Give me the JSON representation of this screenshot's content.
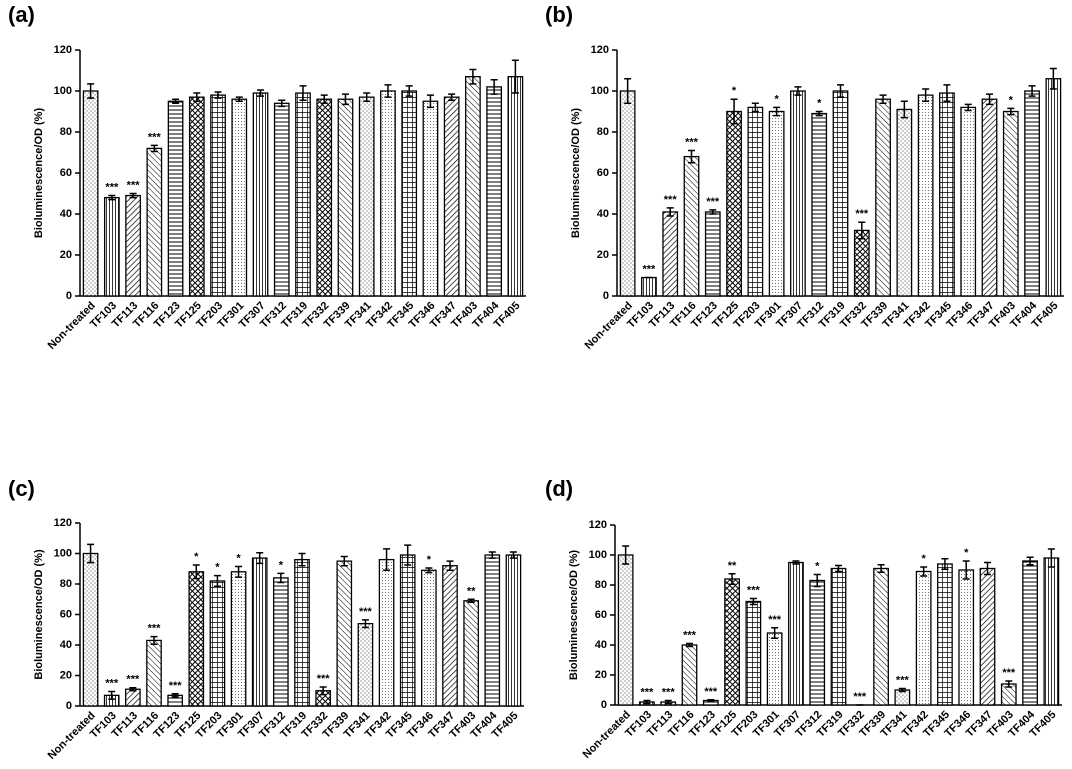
{
  "chart_data": [
    {
      "type": "bar",
      "panel_label": "(a)",
      "ylabel": "Bioluminescence/OD (%)",
      "categories": [
        "Non-treated",
        "TF103",
        "TF113",
        "TF116",
        "TF123",
        "TF125",
        "TF203",
        "TF301",
        "TF307",
        "TF312",
        "TF319",
        "TF332",
        "TF339",
        "TF341",
        "TF342",
        "TF345",
        "TF346",
        "TF347",
        "TF403",
        "TF404",
        "TF405"
      ],
      "values": [
        100,
        48,
        49,
        72,
        95,
        97,
        98,
        96,
        99,
        94,
        99,
        96,
        96,
        97,
        100,
        100,
        95,
        97,
        107,
        102,
        107
      ],
      "errors": [
        3.5,
        1,
        1,
        1.5,
        1,
        2,
        1.5,
        1,
        1.5,
        1.5,
        3.5,
        2,
        2.5,
        2,
        3,
        2.5,
        3,
        1.5,
        3.5,
        3.5,
        8
      ],
      "annotations": [
        null,
        "***",
        "***",
        "***",
        null,
        null,
        null,
        null,
        null,
        null,
        null,
        null,
        null,
        null,
        null,
        null,
        null,
        null,
        null,
        null,
        null
      ],
      "color": "#000000",
      "ylim": [
        0,
        120
      ],
      "yticks": [
        0,
        20,
        40,
        60,
        80,
        100,
        120
      ]
    },
    {
      "type": "bar",
      "panel_label": "(b)",
      "ylabel": "Bioluminescence/OD (%)",
      "categories": [
        "Non-treated",
        "TF103",
        "TF113",
        "TF116",
        "TF123",
        "TF125",
        "TF203",
        "TF301",
        "TF307",
        "TF312",
        "TF319",
        "TF332",
        "TF339",
        "TF341",
        "TF342",
        "TF345",
        "TF346",
        "TF347",
        "TF403",
        "TF404",
        "TF405"
      ],
      "values": [
        100,
        9,
        41,
        68,
        41,
        90,
        92,
        90,
        100,
        89,
        100,
        32,
        96,
        91,
        98,
        99,
        92,
        96,
        90,
        100,
        106
      ],
      "errors": [
        6,
        0,
        2,
        3,
        1,
        6,
        2,
        2,
        2,
        1,
        3,
        4,
        2,
        4,
        3,
        4,
        1.5,
        2.5,
        1.5,
        2.5,
        5
      ],
      "annotations": [
        null,
        "***",
        "***",
        "***",
        "***",
        "*",
        null,
        "*",
        null,
        "*",
        null,
        "***",
        null,
        null,
        null,
        null,
        null,
        null,
        "*",
        null,
        null
      ],
      "color": "#000000",
      "ylim": [
        0,
        120
      ],
      "yticks": [
        0,
        20,
        40,
        60,
        80,
        100,
        120
      ]
    },
    {
      "type": "bar",
      "panel_label": "(c)",
      "ylabel": "Bioluminescence/OD (%)",
      "categories": [
        "Non-treated",
        "TF103",
        "TF113",
        "TF116",
        "TF123",
        "TF125",
        "TF203",
        "TF301",
        "TF307",
        "TF312",
        "TF319",
        "TF332",
        "TF339",
        "TF341",
        "TF342",
        "TF345",
        "TF346",
        "TF347",
        "TF403",
        "TF404",
        "TF405"
      ],
      "values": [
        100,
        7,
        11,
        43,
        7,
        88,
        82,
        88,
        97,
        84,
        96,
        10,
        95,
        54,
        96,
        99,
        89,
        92,
        69,
        99,
        99
      ],
      "errors": [
        6,
        2.5,
        1,
        2.5,
        1,
        4.5,
        3.5,
        3.5,
        3.5,
        3,
        4,
        2.5,
        3,
        2.5,
        7,
        6.5,
        1.5,
        3,
        1,
        2,
        2
      ],
      "annotations": [
        null,
        "***",
        "***",
        "***",
        "***",
        "*",
        "*",
        "*",
        null,
        "*",
        null,
        "***",
        null,
        "***",
        null,
        null,
        "*",
        null,
        "**",
        null,
        null
      ],
      "color": "#000000",
      "ylim": [
        0,
        120
      ],
      "yticks": [
        0,
        20,
        40,
        60,
        80,
        100,
        120
      ]
    },
    {
      "type": "bar",
      "panel_label": "(d)",
      "ylabel": "Bioluminescence/OD (%)",
      "categories": [
        "Non-treated",
        "TF103",
        "TF113",
        "TF116",
        "TF123",
        "TF125",
        "TF203",
        "TF301",
        "TF307",
        "TF312",
        "TF319",
        "TF332",
        "TF339",
        "TF341",
        "TF342",
        "TF345",
        "TF346",
        "TF347",
        "TF403",
        "TF404",
        "TF405"
      ],
      "values": [
        100,
        2,
        2,
        40,
        3,
        84,
        69,
        48,
        95,
        83,
        91,
        0,
        91,
        10,
        89,
        94,
        90,
        91,
        14,
        96,
        98
      ],
      "errors": [
        6,
        1,
        1,
        1,
        0.5,
        3.5,
        2,
        3.5,
        1,
        4,
        2,
        0,
        2.5,
        1,
        3,
        3.5,
        6,
        4,
        2,
        2.5,
        6
      ],
      "annotations": [
        null,
        "***",
        "***",
        "***",
        "***",
        "**",
        "***",
        "***",
        null,
        "*",
        null,
        "***",
        null,
        "***",
        "*",
        null,
        "*",
        null,
        "***",
        null,
        null
      ],
      "color": "#000000",
      "ylim": [
        0,
        120
      ],
      "yticks": [
        0,
        20,
        40,
        60,
        80,
        100,
        120
      ]
    }
  ]
}
